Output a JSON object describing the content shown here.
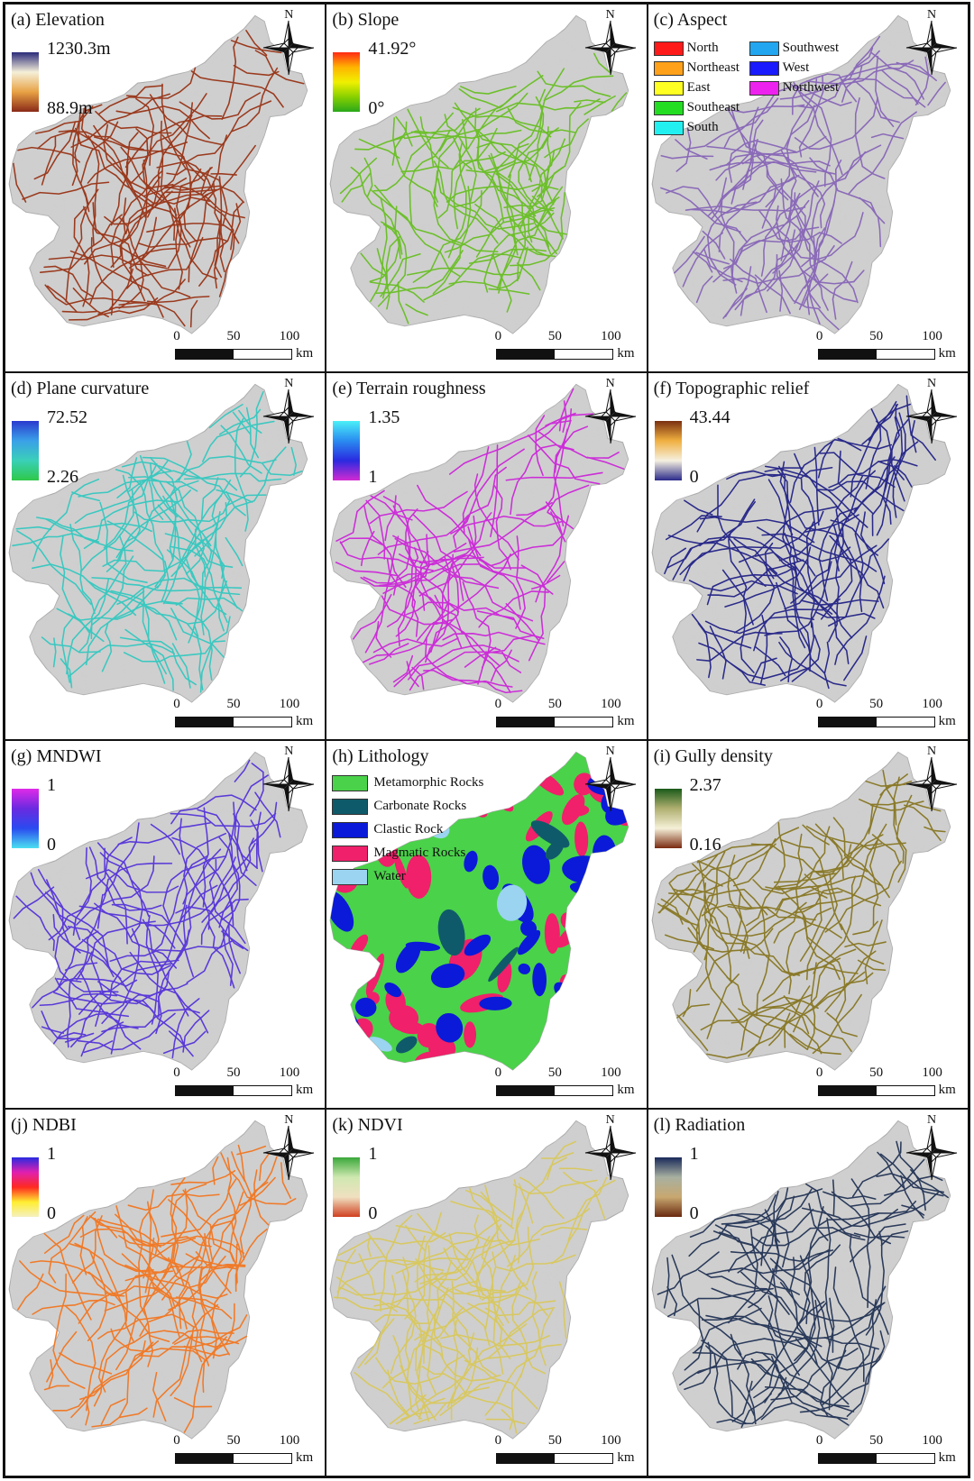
{
  "scale_bar": {
    "labels": [
      "0",
      "50",
      "100"
    ],
    "unit": "km"
  },
  "north_label": "N",
  "panels": [
    {
      "title": "(a) Elevation",
      "max": "1230.3m",
      "min": "88.9m",
      "ramp_colors": [
        "#2a2a7a",
        "#f5efd8",
        "#e8a244",
        "#8a2a18"
      ],
      "network_color": "#9a3a1e"
    },
    {
      "title": "(b) Slope",
      "max": "41.92°",
      "min": "0°",
      "ramp_colors": [
        "#ff2a14",
        "#ffb400",
        "#f0f000",
        "#88d000",
        "#2aa81a"
      ],
      "network_color": "#6cbf2a"
    },
    {
      "title": "(c) Aspect",
      "categories": [
        {
          "label": "North",
          "color": "#ff1a1a"
        },
        {
          "label": "Northeast",
          "color": "#ffa21a"
        },
        {
          "label": "East",
          "color": "#ffff22"
        },
        {
          "label": "Southeast",
          "color": "#22dd22"
        },
        {
          "label": "South",
          "color": "#22f0f0"
        },
        {
          "label": "Southwest",
          "color": "#22a6f0"
        },
        {
          "label": "West",
          "color": "#1a1aff"
        },
        {
          "label": "Northwest",
          "color": "#ee22ee"
        }
      ],
      "network_color": "#8a6ab8"
    },
    {
      "title": "(d) Plane curvature",
      "max": "72.52",
      "min": "2.26",
      "ramp_colors": [
        "#2a3acf",
        "#3aa0e8",
        "#3ad0b8",
        "#2ec84a"
      ],
      "network_color": "#3ac8c0"
    },
    {
      "title": "(e) Terrain roughness",
      "max": "1.35",
      "min": "1",
      "ramp_colors": [
        "#4af0f8",
        "#2a8cf0",
        "#2a2ae0",
        "#d22ad2"
      ],
      "network_color": "#cc2ed8"
    },
    {
      "title": "(f) Topographic relief",
      "max": "43.44",
      "min": "0",
      "ramp_colors": [
        "#7a3010",
        "#f0b040",
        "#f5f0e0",
        "#2a2a8a"
      ],
      "network_color": "#2a2a8a"
    },
    {
      "title": "(g) MNDWI",
      "max": "1",
      "min": "0",
      "ramp_colors": [
        "#e02ae8",
        "#6a2ae0",
        "#2a4af0",
        "#4ae0f0"
      ],
      "network_color": "#5a3ad8"
    },
    {
      "title": "(h) Lithology",
      "categories": [
        {
          "label": "Metamorphic Rocks",
          "color": "#4ad24a"
        },
        {
          "label": "Carbonate Rocks",
          "color": "#0f5a6a"
        },
        {
          "label": "Clastic Rock",
          "color": "#0a1ad8"
        },
        {
          "label": "Magmatic Rocks",
          "color": "#f0206a"
        },
        {
          "label": "Water",
          "color": "#9ad4f0"
        }
      ]
    },
    {
      "title": "(i) Gully density",
      "max": "2.37",
      "min": "0.16",
      "ramp_colors": [
        "#1a5a1a",
        "#b0b070",
        "#f5f0d8",
        "#7a2a10"
      ],
      "network_color": "#8a7a2a"
    },
    {
      "title": "(j) NDBI",
      "max": "1",
      "min": "0",
      "ramp_colors": [
        "#2a2ae0",
        "#e020b0",
        "#ff2a20",
        "#ffee30",
        "#f5f0c0"
      ],
      "network_color": "#f07a28"
    },
    {
      "title": "(k) NDVI",
      "max": "1",
      "min": "0",
      "ramp_colors": [
        "#3aa83a",
        "#cfe8b0",
        "#f0e0c0",
        "#d04020"
      ],
      "network_color": "#d8c860"
    },
    {
      "title": "(l) Radiation",
      "max": "1",
      "min": "0",
      "ramp_colors": [
        "#1a2a5a",
        "#a8b0a0",
        "#c8a870",
        "#6a2a10"
      ],
      "network_color": "#2a3a5a"
    }
  ]
}
